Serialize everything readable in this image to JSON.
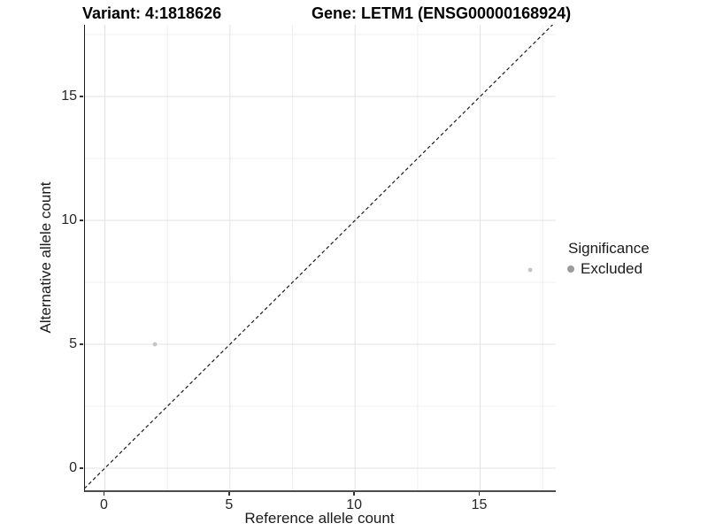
{
  "header": {
    "variant_title": "Variant: 4:1818626",
    "gene_title": "Gene: LETM1 (ENSG00000168924)"
  },
  "legend": {
    "title": "Significance",
    "items": [
      {
        "label": "Excluded",
        "marker_color": "#9c9c9c"
      }
    ]
  },
  "chart_data": {
    "type": "scatter",
    "title": "Variant: 4:1818626 / Gene: LETM1 (ENSG00000168924)",
    "xlabel": "Reference allele count",
    "ylabel": "Alternative allele count",
    "xlim": [
      -0.85,
      18.0
    ],
    "ylim": [
      -0.9,
      17.85
    ],
    "x_major_ticks": [
      0,
      5,
      10,
      15
    ],
    "y_major_ticks": [
      0,
      5,
      10,
      15
    ],
    "x_minor_gridlines": [
      2.5,
      7.5,
      12.5,
      17.5
    ],
    "y_minor_gridlines": [
      2.5,
      7.5,
      12.5,
      17.5
    ],
    "grid": true,
    "legend_position": "right-middle",
    "identity_line": {
      "type": "y=x",
      "style": "dashed",
      "color": "#1a1a1a"
    },
    "series": [
      {
        "name": "Excluded",
        "color": "#c4c4c4",
        "points": [
          [
            2,
            5
          ],
          [
            17,
            8
          ]
        ]
      }
    ]
  },
  "colors": {
    "background": "#ffffff",
    "grid_major": "#e3e3e3",
    "grid_minor": "#efefef",
    "axis_line": "#333333",
    "tick_text": "#262626"
  }
}
